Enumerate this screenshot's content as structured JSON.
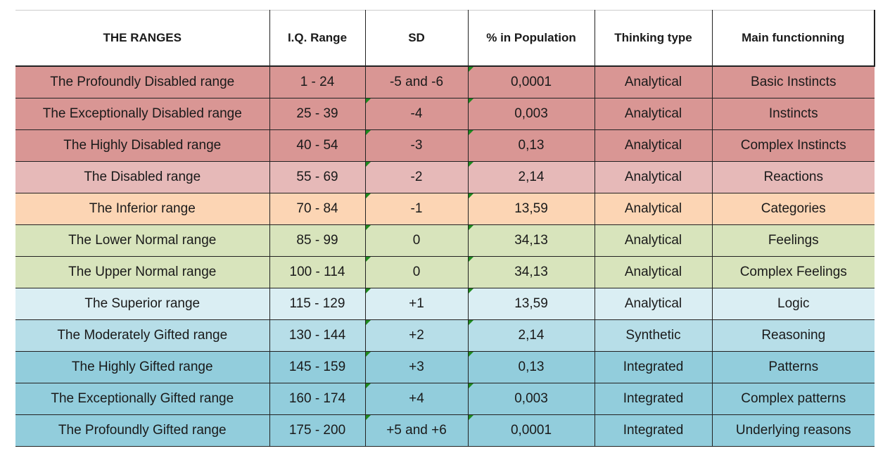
{
  "headers": [
    "THE RANGES",
    "I.Q. Range",
    "SD",
    "% in Population",
    "Thinking type",
    "Main functionning"
  ],
  "colors": {
    "red": "#d99694",
    "pink": "#e6b9b8",
    "orange": "#fcd5b4",
    "green": "#d8e4bc",
    "light_blue": "#daeef3",
    "mid_blue": "#b7dee8",
    "blue": "#92cddc"
  },
  "rows": [
    {
      "range": "The Profoundly Disabled range",
      "iq": "1 - 24",
      "sd": "-5 and -6",
      "pct": "0,0001",
      "thinking": "Analytical",
      "function": "Basic Instincts",
      "color": "#d99694"
    },
    {
      "range": "The Exceptionally Disabled range",
      "iq": "25 - 39",
      "sd": "-4",
      "pct": "0,003",
      "thinking": "Analytical",
      "function": "Instincts",
      "color": "#d99694"
    },
    {
      "range": "The Highly Disabled range",
      "iq": "40 - 54",
      "sd": "-3",
      "pct": "0,13",
      "thinking": "Analytical",
      "function": "Complex Instincts",
      "color": "#d99694"
    },
    {
      "range": "The Disabled range",
      "iq": "55 - 69",
      "sd": "-2",
      "pct": "2,14",
      "thinking": "Analytical",
      "function": "Reactions",
      "color": "#e6b9b8"
    },
    {
      "range": "The Inferior range",
      "iq": "70 - 84",
      "sd": "-1",
      "pct": "13,59",
      "thinking": "Analytical",
      "function": "Categories",
      "color": "#fcd5b4"
    },
    {
      "range": "The Lower Normal range",
      "iq": "85 - 99",
      "sd": "0",
      "pct": "34,13",
      "thinking": "Analytical",
      "function": "Feelings",
      "color": "#d8e4bc"
    },
    {
      "range": "The Upper Normal range",
      "iq": "100 - 114",
      "sd": "0",
      "pct": "34,13",
      "thinking": "Analytical",
      "function": "Complex Feelings",
      "color": "#d8e4bc"
    },
    {
      "range": "The Superior range",
      "iq": "115 - 129",
      "sd": "+1",
      "pct": "13,59",
      "thinking": "Analytical",
      "function": "Logic",
      "color": "#daeef3"
    },
    {
      "range": "The Moderately Gifted range",
      "iq": "130 - 144",
      "sd": "+2",
      "pct": "2,14",
      "thinking": "Synthetic",
      "function": "Reasoning",
      "color": "#b7dee8"
    },
    {
      "range": "The Highly Gifted range",
      "iq": "145 - 159",
      "sd": "+3",
      "pct": "0,13",
      "thinking": "Integrated",
      "function": "Patterns",
      "color": "#92cddc"
    },
    {
      "range": "The Exceptionally Gifted range",
      "iq": "160 - 174",
      "sd": "+4",
      "pct": "0,003",
      "thinking": "Integrated",
      "function": "Complex patterns",
      "color": "#92cddc"
    },
    {
      "range": "The Profoundly Gifted range",
      "iq": "175 - 200",
      "sd": "+5 and +6",
      "pct": "0,0001",
      "thinking": "Integrated",
      "function": "Underlying reasons",
      "color": "#92cddc"
    }
  ]
}
